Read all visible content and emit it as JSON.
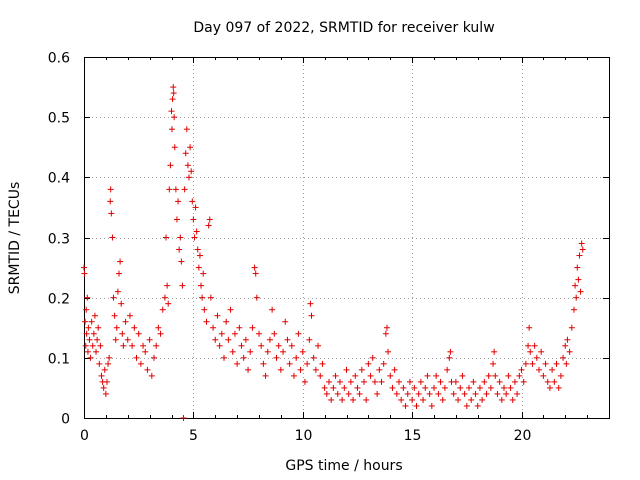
{
  "chart_data": {
    "type": "scatter",
    "title": "Day 097 of 2022, SRMTID for receiver kulw",
    "xlabel": "GPS time / hours",
    "ylabel": "SRMTID / TECUs",
    "xlim": [
      0,
      24
    ],
    "ylim": [
      0,
      0.6
    ],
    "xticks": [
      "0",
      "5",
      "10",
      "15",
      "20"
    ],
    "yticks": [
      "0",
      "0.1",
      "0.2",
      "0.3",
      "0.4",
      "0.5",
      "0.6"
    ],
    "grid": true,
    "marker": "plus",
    "color": "#e00000",
    "series": [
      {
        "name": "SRMTID",
        "points": [
          [
            0.0,
            0.25
          ],
          [
            0.02,
            0.24
          ],
          [
            0.05,
            0.16
          ],
          [
            0.08,
            0.12
          ],
          [
            0.1,
            0.18
          ],
          [
            0.12,
            0.14
          ],
          [
            0.15,
            0.2
          ],
          [
            0.18,
            0.11
          ],
          [
            0.2,
            0.15
          ],
          [
            0.25,
            0.13
          ],
          [
            0.3,
            0.1
          ],
          [
            0.35,
            0.16
          ],
          [
            0.4,
            0.12
          ],
          [
            0.45,
            0.14
          ],
          [
            0.5,
            0.17
          ],
          [
            0.55,
            0.11
          ],
          [
            0.6,
            0.13
          ],
          [
            0.65,
            0.15
          ],
          [
            0.7,
            0.09
          ],
          [
            0.75,
            0.12
          ],
          [
            0.8,
            0.07
          ],
          [
            0.85,
            0.06
          ],
          [
            0.9,
            0.05
          ],
          [
            0.95,
            0.08
          ],
          [
            1.0,
            0.04
          ],
          [
            1.05,
            0.06
          ],
          [
            1.1,
            0.09
          ],
          [
            1.15,
            0.1
          ],
          [
            1.2,
            0.36
          ],
          [
            1.22,
            0.38
          ],
          [
            1.25,
            0.34
          ],
          [
            1.3,
            0.3
          ],
          [
            1.35,
            0.2
          ],
          [
            1.4,
            0.17
          ],
          [
            1.45,
            0.13
          ],
          [
            1.5,
            0.15
          ],
          [
            1.55,
            0.21
          ],
          [
            1.6,
            0.24
          ],
          [
            1.65,
            0.26
          ],
          [
            1.7,
            0.19
          ],
          [
            1.75,
            0.14
          ],
          [
            1.8,
            0.12
          ],
          [
            1.9,
            0.16
          ],
          [
            2.0,
            0.13
          ],
          [
            2.1,
            0.17
          ],
          [
            2.2,
            0.12
          ],
          [
            2.3,
            0.15
          ],
          [
            2.4,
            0.1
          ],
          [
            2.5,
            0.14
          ],
          [
            2.6,
            0.09
          ],
          [
            2.7,
            0.12
          ],
          [
            2.8,
            0.11
          ],
          [
            2.9,
            0.08
          ],
          [
            3.0,
            0.13
          ],
          [
            3.1,
            0.07
          ],
          [
            3.2,
            0.1
          ],
          [
            3.3,
            0.12
          ],
          [
            3.4,
            0.15
          ],
          [
            3.5,
            0.14
          ],
          [
            3.6,
            0.18
          ],
          [
            3.7,
            0.2
          ],
          [
            3.75,
            0.3
          ],
          [
            3.8,
            0.22
          ],
          [
            3.85,
            0.19
          ],
          [
            3.9,
            0.38
          ],
          [
            3.95,
            0.42
          ],
          [
            4.0,
            0.51
          ],
          [
            4.02,
            0.48
          ],
          [
            4.05,
            0.53
          ],
          [
            4.08,
            0.55
          ],
          [
            4.1,
            0.54
          ],
          [
            4.12,
            0.5
          ],
          [
            4.15,
            0.45
          ],
          [
            4.2,
            0.38
          ],
          [
            4.25,
            0.33
          ],
          [
            4.3,
            0.36
          ],
          [
            4.35,
            0.28
          ],
          [
            4.4,
            0.3
          ],
          [
            4.45,
            0.26
          ],
          [
            4.5,
            0.22
          ],
          [
            4.55,
            0.0
          ],
          [
            4.6,
            0.38
          ],
          [
            4.65,
            0.44
          ],
          [
            4.7,
            0.48
          ],
          [
            4.75,
            0.42
          ],
          [
            4.8,
            0.4
          ],
          [
            4.85,
            0.45
          ],
          [
            4.9,
            0.41
          ],
          [
            4.95,
            0.36
          ],
          [
            5.0,
            0.33
          ],
          [
            5.05,
            0.3
          ],
          [
            5.1,
            0.35
          ],
          [
            5.15,
            0.31
          ],
          [
            5.2,
            0.28
          ],
          [
            5.25,
            0.25
          ],
          [
            5.3,
            0.27
          ],
          [
            5.35,
            0.22
          ],
          [
            5.4,
            0.2
          ],
          [
            5.45,
            0.24
          ],
          [
            5.5,
            0.18
          ],
          [
            5.6,
            0.16
          ],
          [
            5.7,
            0.32
          ],
          [
            5.75,
            0.33
          ],
          [
            5.8,
            0.2
          ],
          [
            5.9,
            0.15
          ],
          [
            6.0,
            0.13
          ],
          [
            6.1,
            0.17
          ],
          [
            6.2,
            0.12
          ],
          [
            6.3,
            0.14
          ],
          [
            6.4,
            0.1
          ],
          [
            6.5,
            0.16
          ],
          [
            6.6,
            0.13
          ],
          [
            6.7,
            0.18
          ],
          [
            6.8,
            0.11
          ],
          [
            6.9,
            0.14
          ],
          [
            7.0,
            0.09
          ],
          [
            7.1,
            0.15
          ],
          [
            7.2,
            0.12
          ],
          [
            7.3,
            0.1
          ],
          [
            7.4,
            0.13
          ],
          [
            7.5,
            0.08
          ],
          [
            7.6,
            0.11
          ],
          [
            7.7,
            0.15
          ],
          [
            7.8,
            0.25
          ],
          [
            7.85,
            0.24
          ],
          [
            7.9,
            0.2
          ],
          [
            8.0,
            0.14
          ],
          [
            8.1,
            0.12
          ],
          [
            8.2,
            0.09
          ],
          [
            8.3,
            0.07
          ],
          [
            8.4,
            0.11
          ],
          [
            8.5,
            0.13
          ],
          [
            8.6,
            0.18
          ],
          [
            8.7,
            0.14
          ],
          [
            8.8,
            0.1
          ],
          [
            8.9,
            0.12
          ],
          [
            9.0,
            0.08
          ],
          [
            9.1,
            0.11
          ],
          [
            9.2,
            0.16
          ],
          [
            9.3,
            0.13
          ],
          [
            9.4,
            0.09
          ],
          [
            9.5,
            0.12
          ],
          [
            9.6,
            0.07
          ],
          [
            9.7,
            0.1
          ],
          [
            9.8,
            0.14
          ],
          [
            9.9,
            0.08
          ],
          [
            10.0,
            0.11
          ],
          [
            10.1,
            0.06
          ],
          [
            10.2,
            0.09
          ],
          [
            10.3,
            0.13
          ],
          [
            10.35,
            0.19
          ],
          [
            10.4,
            0.17
          ],
          [
            10.5,
            0.1
          ],
          [
            10.6,
            0.08
          ],
          [
            10.7,
            0.12
          ],
          [
            10.8,
            0.07
          ],
          [
            10.9,
            0.09
          ],
          [
            11.0,
            0.05
          ],
          [
            11.1,
            0.04
          ],
          [
            11.2,
            0.06
          ],
          [
            11.3,
            0.03
          ],
          [
            11.4,
            0.05
          ],
          [
            11.5,
            0.07
          ],
          [
            11.6,
            0.04
          ],
          [
            11.7,
            0.06
          ],
          [
            11.8,
            0.03
          ],
          [
            11.9,
            0.05
          ],
          [
            12.0,
            0.08
          ],
          [
            12.1,
            0.04
          ],
          [
            12.2,
            0.06
          ],
          [
            12.3,
            0.03
          ],
          [
            12.4,
            0.07
          ],
          [
            12.5,
            0.05
          ],
          [
            12.6,
            0.04
          ],
          [
            12.7,
            0.08
          ],
          [
            12.8,
            0.06
          ],
          [
            12.9,
            0.03
          ],
          [
            13.0,
            0.09
          ],
          [
            13.1,
            0.07
          ],
          [
            13.2,
            0.1
          ],
          [
            13.3,
            0.06
          ],
          [
            13.4,
            0.04
          ],
          [
            13.5,
            0.08
          ],
          [
            13.6,
            0.06
          ],
          [
            13.7,
            0.09
          ],
          [
            13.8,
            0.14
          ],
          [
            13.85,
            0.15
          ],
          [
            13.9,
            0.11
          ],
          [
            14.0,
            0.07
          ],
          [
            14.1,
            0.05
          ],
          [
            14.2,
            0.08
          ],
          [
            14.3,
            0.04
          ],
          [
            14.4,
            0.06
          ],
          [
            14.5,
            0.03
          ],
          [
            14.6,
            0.05
          ],
          [
            14.7,
            0.02
          ],
          [
            14.8,
            0.04
          ],
          [
            14.9,
            0.06
          ],
          [
            15.0,
            0.03
          ],
          [
            15.1,
            0.05
          ],
          [
            15.2,
            0.02
          ],
          [
            15.3,
            0.04
          ],
          [
            15.4,
            0.06
          ],
          [
            15.5,
            0.03
          ],
          [
            15.6,
            0.05
          ],
          [
            15.7,
            0.07
          ],
          [
            15.8,
            0.04
          ],
          [
            15.9,
            0.02
          ],
          [
            16.0,
            0.05
          ],
          [
            16.1,
            0.07
          ],
          [
            16.2,
            0.04
          ],
          [
            16.3,
            0.06
          ],
          [
            16.4,
            0.03
          ],
          [
            16.5,
            0.05
          ],
          [
            16.6,
            0.08
          ],
          [
            16.7,
            0.1
          ],
          [
            16.75,
            0.11
          ],
          [
            16.8,
            0.06
          ],
          [
            16.9,
            0.04
          ],
          [
            17.0,
            0.06
          ],
          [
            17.1,
            0.03
          ],
          [
            17.2,
            0.05
          ],
          [
            17.3,
            0.07
          ],
          [
            17.4,
            0.04
          ],
          [
            17.5,
            0.02
          ],
          [
            17.6,
            0.05
          ],
          [
            17.7,
            0.03
          ],
          [
            17.8,
            0.06
          ],
          [
            17.9,
            0.04
          ],
          [
            18.0,
            0.02
          ],
          [
            18.1,
            0.05
          ],
          [
            18.2,
            0.03
          ],
          [
            18.3,
            0.06
          ],
          [
            18.4,
            0.04
          ],
          [
            18.5,
            0.07
          ],
          [
            18.6,
            0.05
          ],
          [
            18.7,
            0.09
          ],
          [
            18.75,
            0.11
          ],
          [
            18.8,
            0.07
          ],
          [
            18.9,
            0.04
          ],
          [
            19.0,
            0.06
          ],
          [
            19.1,
            0.03
          ],
          [
            19.2,
            0.05
          ],
          [
            19.3,
            0.04
          ],
          [
            19.4,
            0.07
          ],
          [
            19.5,
            0.05
          ],
          [
            19.6,
            0.03
          ],
          [
            19.7,
            0.06
          ],
          [
            19.8,
            0.04
          ],
          [
            19.9,
            0.07
          ],
          [
            20.0,
            0.08
          ],
          [
            20.1,
            0.06
          ],
          [
            20.2,
            0.09
          ],
          [
            20.3,
            0.12
          ],
          [
            20.35,
            0.15
          ],
          [
            20.4,
            0.11
          ],
          [
            20.5,
            0.09
          ],
          [
            20.6,
            0.12
          ],
          [
            20.7,
            0.1
          ],
          [
            20.8,
            0.08
          ],
          [
            20.9,
            0.11
          ],
          [
            21.0,
            0.07
          ],
          [
            21.1,
            0.09
          ],
          [
            21.2,
            0.06
          ],
          [
            21.3,
            0.05
          ],
          [
            21.4,
            0.08
          ],
          [
            21.5,
            0.06
          ],
          [
            21.6,
            0.09
          ],
          [
            21.7,
            0.05
          ],
          [
            21.8,
            0.07
          ],
          [
            21.9,
            0.1
          ],
          [
            22.0,
            0.12
          ],
          [
            22.05,
            0.09
          ],
          [
            22.1,
            0.13
          ],
          [
            22.2,
            0.11
          ],
          [
            22.3,
            0.15
          ],
          [
            22.4,
            0.18
          ],
          [
            22.45,
            0.22
          ],
          [
            22.5,
            0.2
          ],
          [
            22.55,
            0.25
          ],
          [
            22.6,
            0.23
          ],
          [
            22.65,
            0.27
          ],
          [
            22.7,
            0.21
          ],
          [
            22.75,
            0.29
          ],
          [
            22.8,
            0.28
          ]
        ]
      }
    ]
  }
}
